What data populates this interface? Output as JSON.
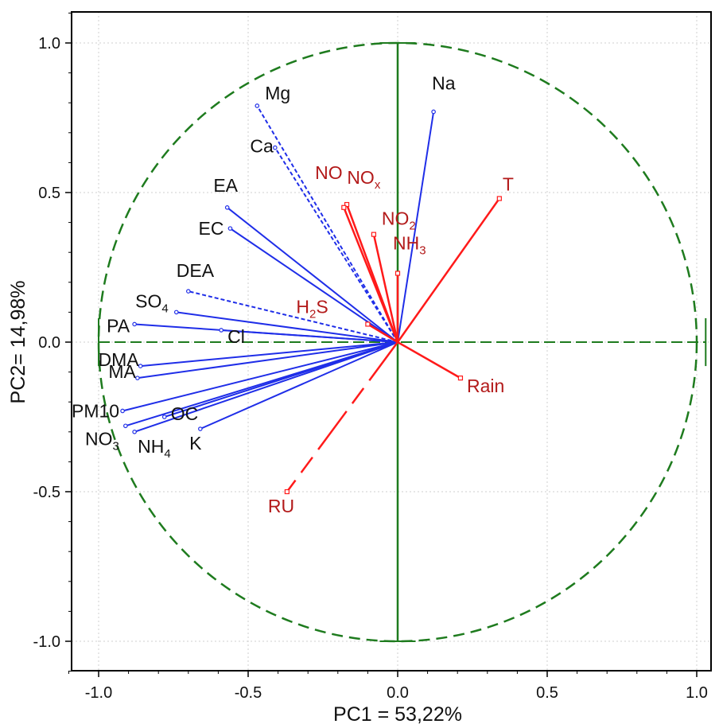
{
  "chart_data": {
    "type": "scatter",
    "subtype": "pca-loading-plot",
    "xlabel": "PC1 = 53,22%",
    "ylabel": "PC2= 14,98%",
    "xlim": [
      -1.1,
      1.0
    ],
    "ylim": [
      -1.1,
      1.1
    ],
    "x_ticks": [
      -1.0,
      -0.5,
      0.0,
      0.5,
      1.0
    ],
    "x_tick_labels": [
      "-1.0",
      "-0.5",
      "0.0",
      "0.5",
      "1.0"
    ],
    "y_ticks": [
      -1.0,
      -0.5,
      0.0,
      0.5,
      1.0
    ],
    "y_tick_labels": [
      "-1.0",
      "-0.5",
      "0.0",
      "0.5",
      "1.0"
    ],
    "grid": true,
    "unit_circle": true,
    "colors": {
      "blue_vectors": "#1f2ee8",
      "red_vectors": "#ff1a1a",
      "red_labels": "#b31a1a",
      "axes_green": "#1e7b1e",
      "black_labels": "#111111"
    },
    "series": [
      {
        "group": "blue",
        "points": [
          {
            "label": "Mg",
            "sub": "",
            "x": -0.47,
            "y": 0.79
          },
          {
            "label": "Ca",
            "sub": "",
            "x": -0.41,
            "y": 0.65
          },
          {
            "label": "Na",
            "sub": "",
            "x": 0.12,
            "y": 0.77
          },
          {
            "label": "EA",
            "sub": "",
            "x": -0.57,
            "y": 0.45
          },
          {
            "label": "EC",
            "sub": "",
            "x": -0.56,
            "y": 0.38
          },
          {
            "label": "DEA",
            "sub": "",
            "x": -0.7,
            "y": 0.17
          },
          {
            "label": "SO",
            "sub": "4",
            "x": -0.74,
            "y": 0.1
          },
          {
            "label": "PA",
            "sub": "",
            "x": -0.88,
            "y": 0.06
          },
          {
            "label": "Cl",
            "sub": "",
            "x": -0.59,
            "y": 0.04
          },
          {
            "label": "DMA",
            "sub": "",
            "x": -0.86,
            "y": -0.08
          },
          {
            "label": "MA",
            "sub": "",
            "x": -0.87,
            "y": -0.12
          },
          {
            "label": "PM10",
            "sub": "",
            "x": -0.92,
            "y": -0.23
          },
          {
            "label": "OC",
            "sub": "",
            "x": -0.78,
            "y": -0.25
          },
          {
            "label": "NO",
            "sub": "3",
            "x": -0.91,
            "y": -0.28
          },
          {
            "label": "NH",
            "sub": "4",
            "x": -0.88,
            "y": -0.3
          },
          {
            "label": "K",
            "sub": "",
            "x": -0.66,
            "y": -0.29
          }
        ]
      },
      {
        "group": "red",
        "points": [
          {
            "label": "NO",
            "sub": "",
            "x": -0.17,
            "y": 0.46
          },
          {
            "label": "NO",
            "sub": "x",
            "x": -0.18,
            "y": 0.45
          },
          {
            "label": "NO",
            "sub": "2",
            "x": -0.08,
            "y": 0.36
          },
          {
            "label": "NH",
            "sub": "3",
            "x": 0.0,
            "y": 0.23
          },
          {
            "label": "T",
            "sub": "",
            "x": 0.34,
            "y": 0.48
          },
          {
            "label": "H",
            "sub": "2",
            "suffix": "S",
            "x": -0.1,
            "y": 0.06
          },
          {
            "label": "Rain",
            "sub": "",
            "x": 0.21,
            "y": -0.12
          },
          {
            "label": "RU",
            "sub": "",
            "x": -0.37,
            "y": -0.5
          }
        ]
      }
    ]
  }
}
